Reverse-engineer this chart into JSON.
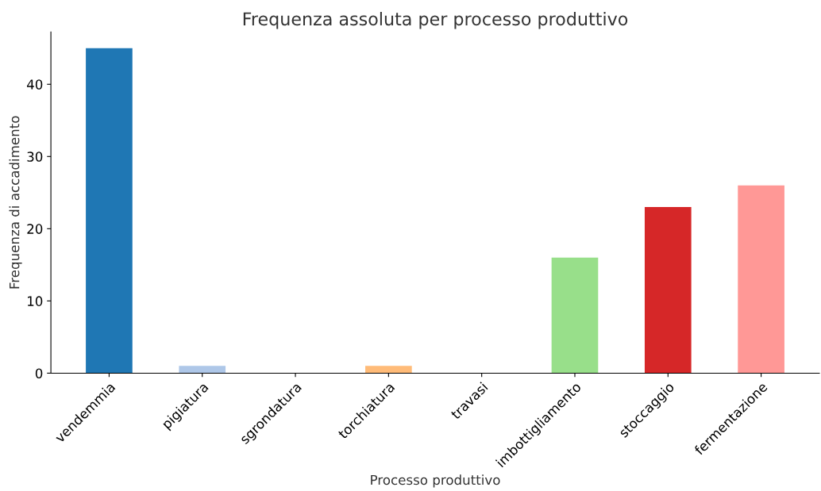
{
  "chart_data": {
    "type": "bar",
    "title": "Frequenza assoluta per processo produttivo",
    "xlabel": "Processo produttivo",
    "ylabel": "Frequenza di accadimento",
    "categories": [
      "vendemmia",
      "pigiatura",
      "sgrondatura",
      "torchiatura",
      "travasi",
      "imbottigliamento",
      "stoccaggio",
      "fermentazione"
    ],
    "values": [
      45,
      1,
      0,
      1,
      0,
      16,
      23,
      26
    ],
    "colors": [
      "#1f77b4",
      "#aec7e8",
      "#ff7f0e",
      "#ffbb78",
      "#2ca02c",
      "#98df8a",
      "#d62728",
      "#ff9896"
    ],
    "ylim": [
      0,
      47.25
    ],
    "yticks": [
      0,
      10,
      20,
      30,
      40
    ],
    "grid": false,
    "legend": false
  }
}
